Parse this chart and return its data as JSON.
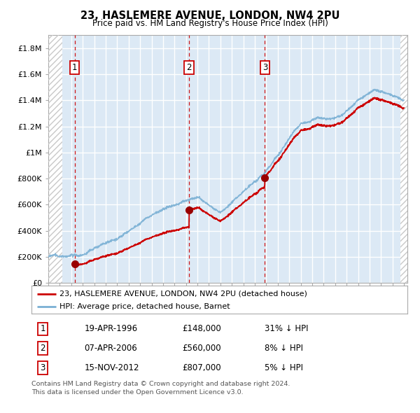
{
  "title": "23, HASLEMERE AVENUE, LONDON, NW4 2PU",
  "subtitle": "Price paid vs. HM Land Registry's House Price Index (HPI)",
  "hpi_label": "HPI: Average price, detached house, Barnet",
  "price_label": "23, HASLEMERE AVENUE, LONDON, NW4 2PU (detached house)",
  "purchases": [
    {
      "label": "1",
      "date": "19-APR-1996",
      "price": 148000,
      "year": 1996.29,
      "hpi_pct": "31% ↓ HPI"
    },
    {
      "label": "2",
      "date": "07-APR-2006",
      "price": 560000,
      "year": 2006.27,
      "hpi_pct": "8% ↓ HPI"
    },
    {
      "label": "3",
      "date": "15-NOV-2012",
      "price": 807000,
      "year": 2012.88,
      "hpi_pct": "5% ↓ HPI"
    }
  ],
  "footer": "Contains HM Land Registry data © Crown copyright and database right 2024.\nThis data is licensed under the Open Government Licence v3.0.",
  "ylim": [
    0,
    1900000
  ],
  "yticks": [
    0,
    200000,
    400000,
    600000,
    800000,
    1000000,
    1200000,
    1400000,
    1600000,
    1800000
  ],
  "bg_color": "#dce9f5",
  "line_red": "#cc0000",
  "line_blue": "#7ab0d4",
  "grid_color": "#ffffff",
  "purchase_dot_color": "#990000",
  "vline_color": "#cc0000",
  "hatch_color": "#c8c8c8"
}
